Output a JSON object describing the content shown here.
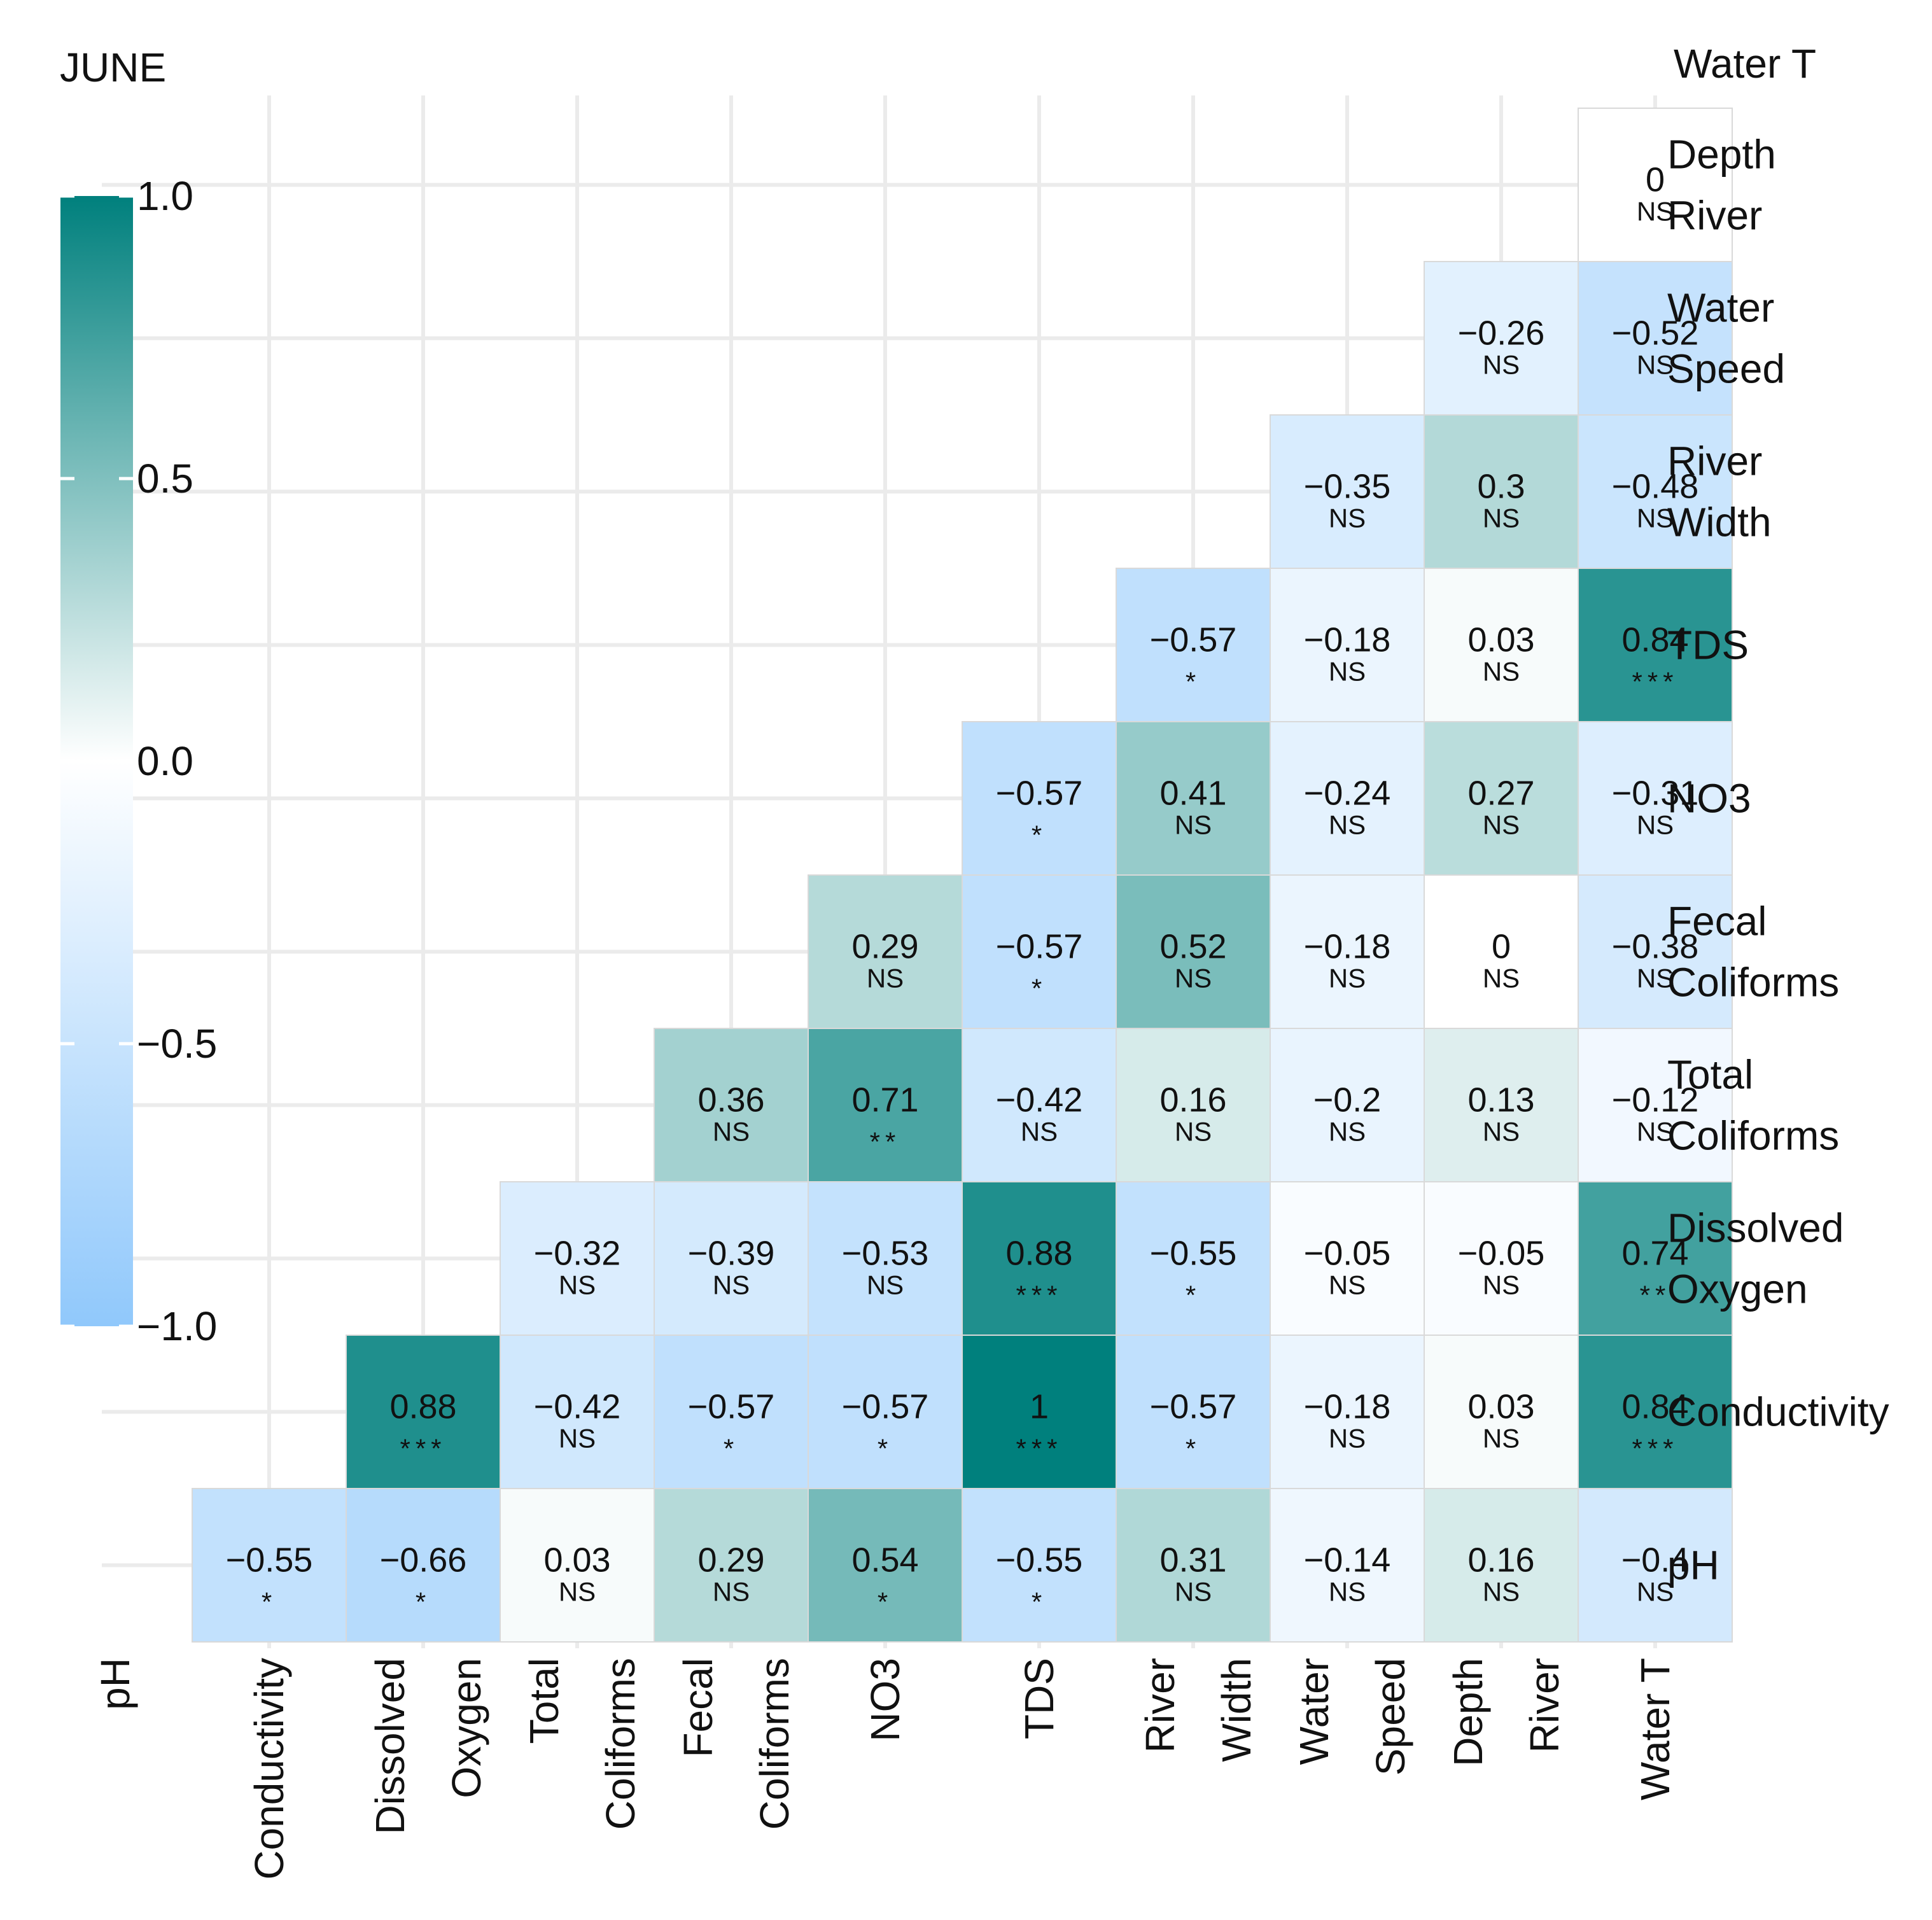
{
  "chart_data": {
    "type": "heatmap",
    "title": "JUNE",
    "x_variables": [
      "pH",
      "Conductivity",
      "Dissolved Oxygen",
      "Total Coliforms",
      "Fecal Coliforms",
      "NO3",
      "TDS",
      "River Width",
      "Water Speed",
      "Depth River",
      "Water T"
    ],
    "y_variables": [
      "pH",
      "Conductivity",
      "Dissolved Oxygen",
      "Total Coliforms",
      "Fecal Coliforms",
      "NO3",
      "TDS",
      "River Width",
      "Water Speed",
      "Depth River",
      "Water T"
    ],
    "x_labels": [
      [
        "pH"
      ],
      [
        "Conductivity"
      ],
      [
        "Dissolved",
        "Oxygen"
      ],
      [
        "Total",
        "Coliforms"
      ],
      [
        "Fecal",
        "Coliforms"
      ],
      [
        "NO3"
      ],
      [
        "TDS"
      ],
      [
        "River",
        "Width"
      ],
      [
        "Water",
        "Speed"
      ],
      [
        "Depth",
        "River"
      ],
      [
        "Water T"
      ]
    ],
    "y_labels": [
      [
        "pH"
      ],
      [
        "Conductivity"
      ],
      [
        "Dissolved",
        "Oxygen"
      ],
      [
        "Total",
        "Coliforms"
      ],
      [
        "Fecal",
        "Coliforms"
      ],
      [
        "NO3"
      ],
      [
        "TDS"
      ],
      [
        "River",
        "Width"
      ],
      [
        "Water",
        "Speed"
      ],
      [
        "Depth",
        "River"
      ],
      [
        "Water T"
      ]
    ],
    "cells": [
      {
        "row": "pH",
        "col": "Conductivity",
        "label": "−0.55",
        "value": -0.55,
        "sig": "*"
      },
      {
        "row": "pH",
        "col": "Dissolved Oxygen",
        "label": "−0.66",
        "value": -0.66,
        "sig": "*"
      },
      {
        "row": "pH",
        "col": "Total Coliforms",
        "label": "0.03",
        "value": 0.03,
        "sig": "NS"
      },
      {
        "row": "pH",
        "col": "Fecal Coliforms",
        "label": "0.29",
        "value": 0.29,
        "sig": "NS"
      },
      {
        "row": "pH",
        "col": "NO3",
        "label": "0.54",
        "value": 0.54,
        "sig": "*"
      },
      {
        "row": "pH",
        "col": "TDS",
        "label": "−0.55",
        "value": -0.55,
        "sig": "*"
      },
      {
        "row": "pH",
        "col": "River Width",
        "label": "0.31",
        "value": 0.31,
        "sig": "NS"
      },
      {
        "row": "pH",
        "col": "Water Speed",
        "label": "−0.14",
        "value": -0.14,
        "sig": "NS"
      },
      {
        "row": "pH",
        "col": "Depth River",
        "label": "0.16",
        "value": 0.16,
        "sig": "NS"
      },
      {
        "row": "pH",
        "col": "Water T",
        "label": "−0.4",
        "value": -0.4,
        "sig": "NS"
      },
      {
        "row": "Conductivity",
        "col": "Dissolved Oxygen",
        "label": "0.88",
        "value": 0.88,
        "sig": "***"
      },
      {
        "row": "Conductivity",
        "col": "Total Coliforms",
        "label": "−0.42",
        "value": -0.42,
        "sig": "NS"
      },
      {
        "row": "Conductivity",
        "col": "Fecal Coliforms",
        "label": "−0.57",
        "value": -0.57,
        "sig": "*"
      },
      {
        "row": "Conductivity",
        "col": "NO3",
        "label": "−0.57",
        "value": -0.57,
        "sig": "*"
      },
      {
        "row": "Conductivity",
        "col": "TDS",
        "label": "1",
        "value": 1,
        "sig": "***"
      },
      {
        "row": "Conductivity",
        "col": "River Width",
        "label": "−0.57",
        "value": -0.57,
        "sig": "*"
      },
      {
        "row": "Conductivity",
        "col": "Water Speed",
        "label": "−0.18",
        "value": -0.18,
        "sig": "NS"
      },
      {
        "row": "Conductivity",
        "col": "Depth River",
        "label": "0.03",
        "value": 0.03,
        "sig": "NS"
      },
      {
        "row": "Conductivity",
        "col": "Water T",
        "label": "0.84",
        "value": 0.84,
        "sig": "***"
      },
      {
        "row": "Dissolved Oxygen",
        "col": "Total Coliforms",
        "label": "−0.32",
        "value": -0.32,
        "sig": "NS"
      },
      {
        "row": "Dissolved Oxygen",
        "col": "Fecal Coliforms",
        "label": "−0.39",
        "value": -0.39,
        "sig": "NS"
      },
      {
        "row": "Dissolved Oxygen",
        "col": "NO3",
        "label": "−0.53",
        "value": -0.53,
        "sig": "NS"
      },
      {
        "row": "Dissolved Oxygen",
        "col": "TDS",
        "label": "0.88",
        "value": 0.88,
        "sig": "***"
      },
      {
        "row": "Dissolved Oxygen",
        "col": "River Width",
        "label": "−0.55",
        "value": -0.55,
        "sig": "*"
      },
      {
        "row": "Dissolved Oxygen",
        "col": "Water Speed",
        "label": "−0.05",
        "value": -0.05,
        "sig": "NS"
      },
      {
        "row": "Dissolved Oxygen",
        "col": "Depth River",
        "label": "−0.05",
        "value": -0.05,
        "sig": "NS"
      },
      {
        "row": "Dissolved Oxygen",
        "col": "Water T",
        "label": "0.74",
        "value": 0.74,
        "sig": "**"
      },
      {
        "row": "Total Coliforms",
        "col": "Fecal Coliforms",
        "label": "0.36",
        "value": 0.36,
        "sig": "NS"
      },
      {
        "row": "Total Coliforms",
        "col": "NO3",
        "label": "0.71",
        "value": 0.71,
        "sig": "**"
      },
      {
        "row": "Total Coliforms",
        "col": "TDS",
        "label": "−0.42",
        "value": -0.42,
        "sig": "NS"
      },
      {
        "row": "Total Coliforms",
        "col": "River Width",
        "label": "0.16",
        "value": 0.16,
        "sig": "NS"
      },
      {
        "row": "Total Coliforms",
        "col": "Water Speed",
        "label": "−0.2",
        "value": -0.2,
        "sig": "NS"
      },
      {
        "row": "Total Coliforms",
        "col": "Depth River",
        "label": "0.13",
        "value": 0.13,
        "sig": "NS"
      },
      {
        "row": "Total Coliforms",
        "col": "Water T",
        "label": "−0.12",
        "value": -0.12,
        "sig": "NS"
      },
      {
        "row": "Fecal Coliforms",
        "col": "NO3",
        "label": "0.29",
        "value": 0.29,
        "sig": "NS"
      },
      {
        "row": "Fecal Coliforms",
        "col": "TDS",
        "label": "−0.57",
        "value": -0.57,
        "sig": "*"
      },
      {
        "row": "Fecal Coliforms",
        "col": "River Width",
        "label": "0.52",
        "value": 0.52,
        "sig": "NS"
      },
      {
        "row": "Fecal Coliforms",
        "col": "Water Speed",
        "label": "−0.18",
        "value": -0.18,
        "sig": "NS"
      },
      {
        "row": "Fecal Coliforms",
        "col": "Depth River",
        "label": "0",
        "value": 0,
        "sig": "NS"
      },
      {
        "row": "Fecal Coliforms",
        "col": "Water T",
        "label": "−0.38",
        "value": -0.38,
        "sig": "NS"
      },
      {
        "row": "NO3",
        "col": "TDS",
        "label": "−0.57",
        "value": -0.57,
        "sig": "*"
      },
      {
        "row": "NO3",
        "col": "River Width",
        "label": "0.41",
        "value": 0.41,
        "sig": "NS"
      },
      {
        "row": "NO3",
        "col": "Water Speed",
        "label": "−0.24",
        "value": -0.24,
        "sig": "NS"
      },
      {
        "row": "NO3",
        "col": "Depth River",
        "label": "0.27",
        "value": 0.27,
        "sig": "NS"
      },
      {
        "row": "NO3",
        "col": "Water T",
        "label": "−0.31",
        "value": -0.31,
        "sig": "NS"
      },
      {
        "row": "TDS",
        "col": "River Width",
        "label": "−0.57",
        "value": -0.57,
        "sig": "*"
      },
      {
        "row": "TDS",
        "col": "Water Speed",
        "label": "−0.18",
        "value": -0.18,
        "sig": "NS"
      },
      {
        "row": "TDS",
        "col": "Depth River",
        "label": "0.03",
        "value": 0.03,
        "sig": "NS"
      },
      {
        "row": "TDS",
        "col": "Water T",
        "label": "0.84",
        "value": 0.84,
        "sig": "***"
      },
      {
        "row": "River Width",
        "col": "Water Speed",
        "label": "−0.35",
        "value": -0.35,
        "sig": "NS"
      },
      {
        "row": "River Width",
        "col": "Depth River",
        "label": "0.3",
        "value": 0.3,
        "sig": "NS"
      },
      {
        "row": "River Width",
        "col": "Water T",
        "label": "−0.48",
        "value": -0.48,
        "sig": "NS"
      },
      {
        "row": "Water Speed",
        "col": "Depth River",
        "label": "−0.26",
        "value": -0.26,
        "sig": "NS"
      },
      {
        "row": "Water Speed",
        "col": "Water T",
        "label": "−0.52",
        "value": -0.52,
        "sig": "NS"
      },
      {
        "row": "Depth River",
        "col": "Water T",
        "label": "0",
        "value": 0,
        "sig": "NS"
      }
    ],
    "colorbar": {
      "min": -1.0,
      "max": 1.0,
      "ticks": [
        1.0,
        0.5,
        0.0,
        -0.5,
        -1.0
      ],
      "tick_labels": [
        "1.0",
        "0.5",
        "0.0",
        "−0.5",
        "−1.0"
      ],
      "low_color": "#90c8fb",
      "mid_color": "#ffffff",
      "high_color": "#00807d"
    },
    "grid": true,
    "legend_position": "left"
  },
  "colors": {
    "grid": "#ebebeb",
    "cell_border": "#d9d9d9",
    "text": "#111111"
  }
}
